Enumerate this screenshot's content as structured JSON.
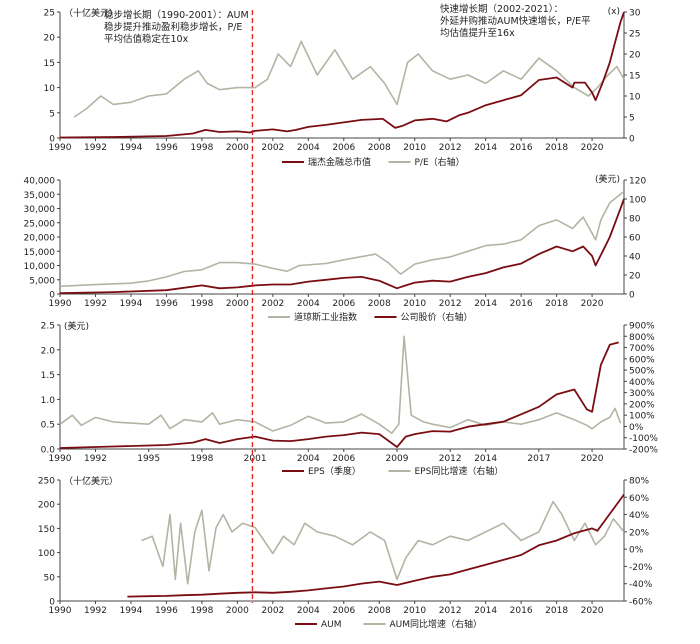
{
  "colors": {
    "dark": "#7a0d12",
    "grey": "#b5b3a4",
    "divider": "#e02020",
    "axis": "#444444"
  },
  "chart_data": [
    {
      "id": "panel1",
      "type": "line",
      "title": "",
      "unit_left": "（十亿美元）",
      "unit_right": "(x)",
      "ylim_left": [
        0,
        25
      ],
      "yticks_left": [
        0,
        5,
        10,
        15,
        20,
        25
      ],
      "ylim_right": [
        0,
        30
      ],
      "yticks_right": [
        0,
        5,
        10,
        15,
        20,
        25,
        30
      ],
      "xlim": [
        1990,
        2021.8
      ],
      "xticks": [
        1990,
        1992,
        1994,
        1996,
        1998,
        2000,
        2002,
        2004,
        2006,
        2008,
        2010,
        2012,
        2014,
        2016,
        2018,
        2020
      ],
      "annotations": {
        "left": [
          "稳步增长期（1990-2001）：AUM",
          "稳步提升推动盈利稳步增长，P/E",
          "平均估值稳定在10x"
        ],
        "right": [
          "快速增长期（2002-2021）：",
          "外延并购推动AUM快速增长，P/E平",
          "均估值提升至16x"
        ]
      },
      "series": [
        {
          "name": "瑞杰金融总市值",
          "axis": "left",
          "color": "dark",
          "x": [
            1990,
            1993,
            1996,
            1997.5,
            1998.2,
            1999,
            2000,
            2000.7,
            2001,
            2002,
            2002.8,
            2003.3,
            2004,
            2005,
            2006,
            2007,
            2008.2,
            2008.9,
            2009.3,
            2010,
            2011,
            2011.8,
            2012.5,
            2013,
            2014,
            2015,
            2016,
            2017,
            2018,
            2018.9,
            2019,
            2019.6,
            2020,
            2020.2,
            2020.6,
            2021,
            2021.3,
            2021.6,
            2021.8
          ],
          "y": [
            0.1,
            0.2,
            0.4,
            0.9,
            1.6,
            1.2,
            1.3,
            1.1,
            1.4,
            1.7,
            1.3,
            1.6,
            2.2,
            2.6,
            3.1,
            3.6,
            3.8,
            2.0,
            2.4,
            3.5,
            3.8,
            3.3,
            4.5,
            5.0,
            6.5,
            7.5,
            8.5,
            11.5,
            12.0,
            10.0,
            11.0,
            11.0,
            9.0,
            7.5,
            11.0,
            15.0,
            19.0,
            23.0,
            25.0
          ]
        },
        {
          "name": "P/E（右轴）",
          "axis": "right",
          "color": "grey",
          "x": [
            1990.8,
            1991.5,
            1992.3,
            1993,
            1994,
            1995,
            1996,
            1997,
            1997.8,
            1998.3,
            1999,
            2000,
            2001,
            2001.7,
            2002.3,
            2003,
            2003.6,
            2004.5,
            2005.5,
            2006.5,
            2007.5,
            2008.3,
            2009,
            2009.6,
            2010.2,
            2011,
            2012,
            2013,
            2014,
            2015,
            2016,
            2017,
            2018,
            2019,
            2019.8,
            2020.3,
            2020.9,
            2021.4,
            2021.8
          ],
          "y": [
            5,
            7,
            10,
            8,
            8.5,
            10,
            10.5,
            14,
            16,
            13,
            11.5,
            12,
            12,
            14,
            20,
            17,
            23,
            15,
            21,
            14,
            17,
            13,
            8,
            18,
            20,
            16,
            14,
            15,
            13,
            16,
            14,
            19,
            16,
            12,
            10,
            12,
            15,
            17,
            14
          ]
        }
      ]
    },
    {
      "id": "panel2",
      "type": "line",
      "unit_right": "(美元)",
      "ylim_left": [
        0,
        40000
      ],
      "yticks_left": [
        0,
        5000,
        10000,
        15000,
        20000,
        25000,
        30000,
        35000,
        40000
      ],
      "ytick_labels_left": [
        "0",
        "5,000",
        "10,000",
        "15,000",
        "20,000",
        "25,000",
        "30,000",
        "35,000",
        "40,000"
      ],
      "ylim_right": [
        0,
        120
      ],
      "yticks_right": [
        0,
        20,
        40,
        60,
        80,
        100,
        120
      ],
      "xlim": [
        1990,
        2021.8
      ],
      "xticks": [
        1990,
        1992,
        1994,
        1996,
        1998,
        2000,
        2002,
        2004,
        2006,
        2008,
        2010,
        2012,
        2014,
        2016,
        2018,
        2020
      ],
      "series": [
        {
          "name": "道琼斯工业指数",
          "axis": "left",
          "color": "grey",
          "x": [
            1990,
            1992,
            1994,
            1995,
            1996,
            1997,
            1998,
            1999,
            2000,
            2001,
            2002,
            2002.8,
            2003.5,
            2005,
            2006,
            2007.8,
            2008.5,
            2009.2,
            2010,
            2011,
            2012,
            2013,
            2014,
            2015,
            2016,
            2017,
            2018,
            2018.9,
            2019.5,
            2020.2,
            2020.5,
            2021,
            2021.8
          ],
          "y": [
            2700,
            3300,
            3800,
            4600,
            6000,
            7900,
            8500,
            11000,
            11000,
            10500,
            9000,
            8000,
            10000,
            10700,
            12000,
            14000,
            11000,
            7000,
            10500,
            12000,
            13000,
            15000,
            17000,
            17500,
            19000,
            24000,
            26000,
            23000,
            27000,
            19000,
            26000,
            32000,
            36000
          ]
        },
        {
          "name": "公司股价（右轴）",
          "axis": "right",
          "color": "dark",
          "x": [
            1990,
            1993,
            1996,
            1998,
            1999,
            2000,
            2001,
            2002,
            2003,
            2004,
            2005,
            2006,
            2007,
            2008,
            2009,
            2009.5,
            2010,
            2011,
            2012,
            2013,
            2014,
            2015,
            2016,
            2017,
            2018,
            2018.9,
            2019.5,
            2020,
            2020.2,
            2020.6,
            2021,
            2021.5,
            2021.8
          ],
          "y": [
            1,
            2,
            4,
            9,
            6,
            7,
            9,
            10,
            10,
            13,
            15,
            17,
            18,
            14,
            6,
            9,
            12,
            14,
            13,
            18,
            22,
            28,
            32,
            42,
            50,
            45,
            50,
            40,
            30,
            45,
            60,
            85,
            100
          ]
        }
      ]
    },
    {
      "id": "panel3",
      "type": "line",
      "unit_left": "(美元)",
      "ylim_left": [
        0,
        2.5
      ],
      "yticks_left": [
        0,
        0.5,
        1.0,
        1.5,
        2.0,
        2.5
      ],
      "ytick_labels_left": [
        "0.0",
        "0.5",
        "1.0",
        "1.5",
        "2.0",
        "2.5"
      ],
      "ylim_right": [
        -200,
        900
      ],
      "yticks_right": [
        -200,
        -100,
        0,
        100,
        200,
        300,
        400,
        500,
        600,
        700,
        800,
        900
      ],
      "ytick_labels_right": [
        "-200%",
        "-100%",
        "0%",
        "100%",
        "200%",
        "300%",
        "400%",
        "500%",
        "600%",
        "700%",
        "800%",
        "900%"
      ],
      "xlim": [
        1990,
        2021.8
      ],
      "xticks": [
        1990,
        1992,
        1995,
        1998,
        2001,
        2004,
        2006,
        2009,
        2012,
        2014,
        2017,
        2020
      ],
      "series": [
        {
          "name": "EPS（季度）",
          "axis": "left",
          "color": "dark",
          "x": [
            1990,
            1993,
            1996,
            1997.5,
            1998.2,
            1999,
            2000,
            2001,
            2002,
            2003,
            2004,
            2005,
            2006,
            2007,
            2008,
            2009,
            2009.5,
            2010,
            2011,
            2012,
            2013,
            2014,
            2015,
            2016,
            2017,
            2018,
            2019,
            2019.7,
            2020,
            2020.5,
            2021,
            2021.5
          ],
          "y": [
            0.02,
            0.05,
            0.08,
            0.13,
            0.2,
            0.12,
            0.2,
            0.25,
            0.17,
            0.16,
            0.2,
            0.25,
            0.28,
            0.33,
            0.3,
            0.04,
            0.25,
            0.3,
            0.36,
            0.35,
            0.45,
            0.5,
            0.55,
            0.7,
            0.85,
            1.1,
            1.2,
            0.8,
            0.75,
            1.7,
            2.1,
            2.15
          ]
        },
        {
          "name": "EPS同比增速（右轴）",
          "axis": "right",
          "color": "grey",
          "x": [
            1990,
            1990.7,
            1991.2,
            1992,
            1993,
            1994,
            1995,
            1995.7,
            1996.2,
            1997,
            1998,
            1998.6,
            1999,
            2000,
            2001,
            2002,
            2003,
            2004,
            2005,
            2006,
            2007,
            2008,
            2008.7,
            2009.1,
            2009.4,
            2009.8,
            2010.5,
            2011,
            2012,
            2013,
            2014,
            2015,
            2016,
            2017,
            2018,
            2019,
            2019.7,
            2020,
            2020.5,
            2021,
            2021.3,
            2021.6
          ],
          "y": [
            20,
            100,
            10,
            80,
            40,
            30,
            20,
            100,
            -20,
            60,
            40,
            120,
            20,
            60,
            40,
            -40,
            10,
            90,
            30,
            40,
            110,
            20,
            -60,
            20,
            800,
            100,
            40,
            20,
            -10,
            60,
            10,
            40,
            20,
            60,
            120,
            60,
            10,
            -20,
            40,
            80,
            160,
            30
          ]
        }
      ]
    },
    {
      "id": "panel4",
      "type": "line",
      "unit_left": "（十亿美元）",
      "ylim_left": [
        0,
        250
      ],
      "yticks_left": [
        0,
        50,
        100,
        150,
        200,
        250
      ],
      "ylim_right": [
        -60,
        80
      ],
      "yticks_right": [
        -60,
        -40,
        -20,
        0,
        20,
        40,
        60,
        80
      ],
      "ytick_labels_right": [
        "-60%",
        "-40%",
        "-20%",
        "0%",
        "20%",
        "40%",
        "60%",
        "80%"
      ],
      "xlim": [
        1990,
        2021.8
      ],
      "xticks": [
        1990,
        1992,
        1994,
        1996,
        1998,
        2000,
        2002,
        2004,
        2006,
        2008,
        2010,
        2012,
        2014,
        2016,
        2018,
        2020
      ],
      "series": [
        {
          "name": "AUM",
          "axis": "left",
          "color": "dark",
          "x": [
            1993.8,
            1995,
            1996,
            1997,
            1998,
            1999,
            2000,
            2001,
            2002,
            2003,
            2004,
            2005,
            2006,
            2007,
            2008,
            2009,
            2010,
            2011,
            2012,
            2013,
            2014,
            2015,
            2016,
            2017,
            2018,
            2019,
            2020,
            2020.3,
            2021,
            2021.8
          ],
          "y": [
            9,
            10,
            10.5,
            12,
            13,
            15,
            17,
            18,
            17,
            19,
            22,
            26,
            30,
            36,
            40,
            33,
            42,
            50,
            55,
            65,
            75,
            85,
            95,
            115,
            125,
            140,
            150,
            145,
            180,
            220
          ]
        },
        {
          "name": "AUM同比增速（右轴）",
          "axis": "right",
          "color": "grey",
          "x": [
            1994.6,
            1995.2,
            1995.8,
            1996.2,
            1996.5,
            1996.8,
            1997.2,
            1997.6,
            1998,
            1998.4,
            1998.8,
            1999.2,
            1999.7,
            2000.3,
            2001,
            2001.5,
            2002,
            2002.6,
            2003.2,
            2003.8,
            2004.5,
            2005.5,
            2006.5,
            2007.5,
            2008.3,
            2009,
            2009.5,
            2010.2,
            2011,
            2012,
            2013,
            2014,
            2015,
            2016,
            2017,
            2017.8,
            2018.3,
            2019,
            2019.6,
            2020.2,
            2020.7,
            2021.2,
            2021.8
          ],
          "y": [
            10,
            15,
            -20,
            40,
            -35,
            30,
            -40,
            20,
            45,
            -25,
            25,
            40,
            20,
            30,
            25,
            10,
            -5,
            15,
            5,
            30,
            20,
            15,
            5,
            20,
            10,
            -35,
            -10,
            10,
            5,
            15,
            10,
            20,
            30,
            10,
            20,
            55,
            40,
            10,
            30,
            5,
            15,
            35,
            20
          ]
        }
      ]
    }
  ],
  "legends": {
    "panel1": [
      "瑞杰金融总市值",
      "P/E（右轴）"
    ],
    "panel2": [
      "道琼斯工业指数",
      "公司股价（右轴）"
    ],
    "panel3": [
      "EPS（季度）",
      "EPS同比增速（右轴）"
    ],
    "panel4": [
      "AUM",
      "AUM同比增速（右轴）"
    ]
  },
  "divider_year": 2000.85
}
